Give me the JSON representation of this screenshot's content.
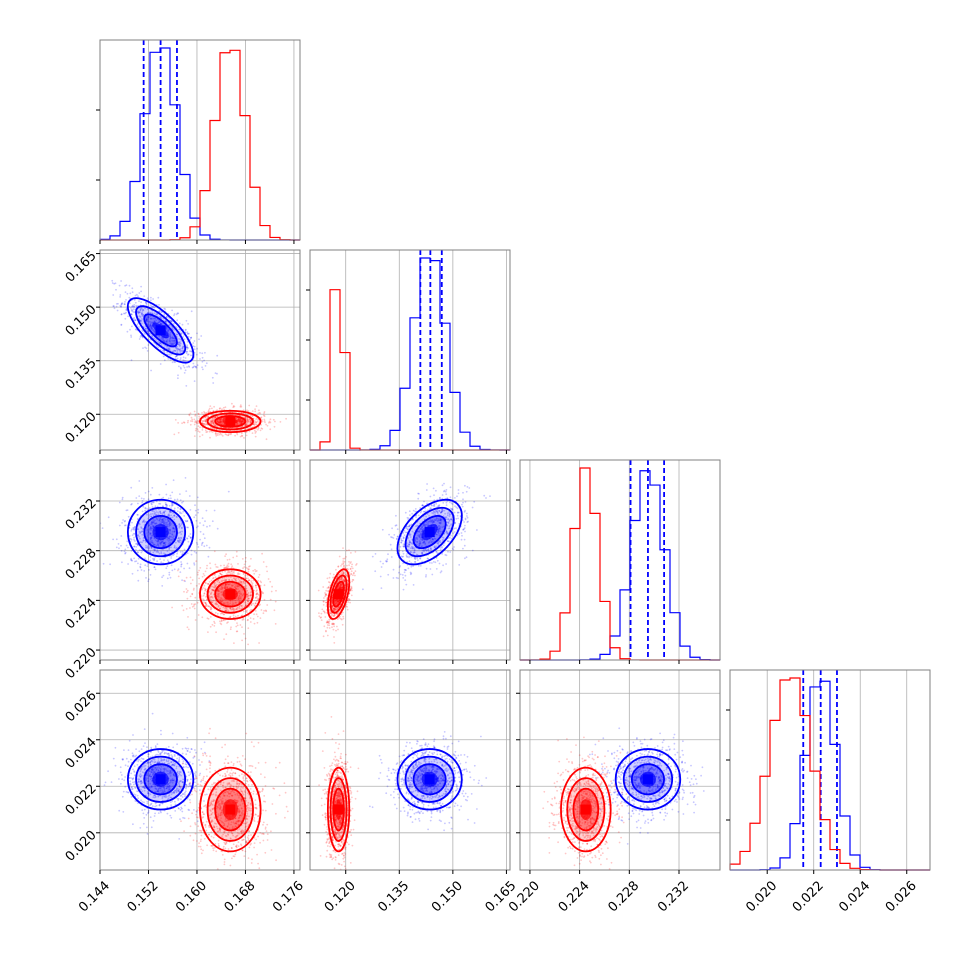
{
  "chart_data": {
    "type": "corner",
    "grid": true,
    "colors": {
      "blue": "#0000ff",
      "red": "#ff0000",
      "grid": "#b0b0b0",
      "axis": "#808080"
    },
    "parameters": [
      {
        "range": [
          0.144,
          0.177
        ],
        "ticks": [
          "0.144",
          "0.152",
          "0.160",
          "0.168",
          "0.176"
        ],
        "tick_values": [
          0.144,
          0.152,
          0.16,
          0.168,
          0.176
        ]
      },
      {
        "range": [
          0.11,
          0.166
        ],
        "ticks": [
          "0.120",
          "0.135",
          "0.150",
          "0.165"
        ],
        "tick_values": [
          0.12,
          0.135,
          0.15,
          0.165
        ]
      },
      {
        "range": [
          0.2192,
          0.2353
        ],
        "ticks": [
          "0.220",
          "0.224",
          "0.228",
          "0.232"
        ],
        "tick_values": [
          0.22,
          0.224,
          0.228,
          0.232
        ]
      },
      {
        "range": [
          0.0184,
          0.027
        ],
        "ticks": [
          "0.020",
          "0.022",
          "0.024",
          "0.026"
        ],
        "tick_values": [
          0.02,
          0.022,
          0.024,
          0.026
        ]
      }
    ],
    "series": [
      {
        "color": "blue",
        "means": [
          0.154,
          0.1435,
          0.2295,
          0.0223
        ],
        "sigmas": [
          0.0027,
          0.0045,
          0.0013,
          0.00065
        ],
        "correlations": {
          "1-0": -0.75,
          "2-0": 0.0,
          "2-1": 0.5,
          "3-0": 0.0,
          "3-1": 0.0,
          "3-2": 0.0
        },
        "quantiles": [
          [
            0.1512,
            0.154,
            0.1567
          ],
          [
            0.1409,
            0.1437,
            0.1469
          ],
          [
            0.2281,
            0.2295,
            0.2308
          ],
          [
            0.02155,
            0.0223,
            0.023
          ]
        ]
      },
      {
        "color": "red",
        "means": [
          0.1655,
          0.118,
          0.2245,
          0.021
        ],
        "sigmas": [
          0.0025,
          0.0015,
          0.001,
          0.0009
        ],
        "correlations": {
          "1-0": 0.0,
          "2-0": 0.0,
          "2-1": 0.5,
          "3-0": 0.0,
          "3-1": 0.0,
          "3-2": 0.0
        },
        "quantiles": []
      }
    ]
  }
}
